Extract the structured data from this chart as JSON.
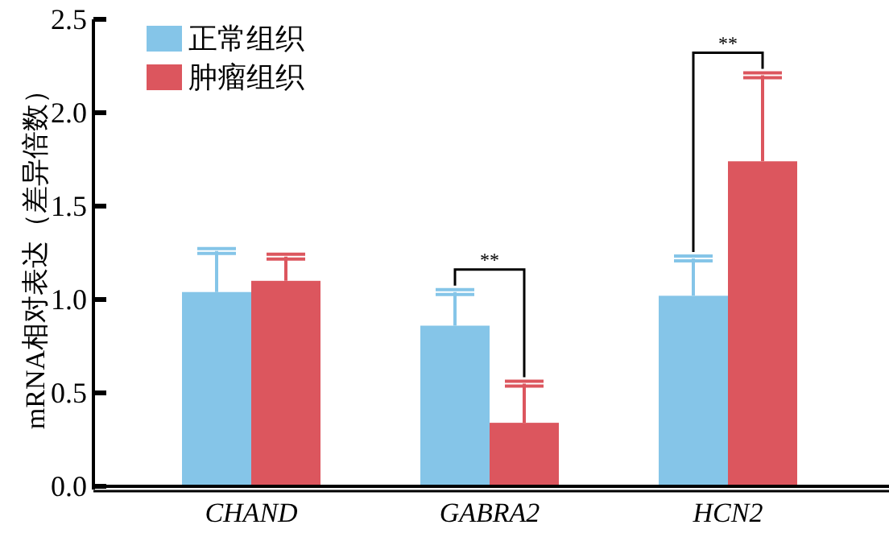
{
  "chart_data": {
    "type": "bar",
    "ylabel": "mRNA相对表达（差异倍数）",
    "categories": [
      "CHAND",
      "GABRA2",
      "HCN2"
    ],
    "series": [
      {
        "name": "正常组织",
        "color": "#85c5e8",
        "values": [
          1.04,
          0.86,
          1.02
        ],
        "errors": [
          0.22,
          0.18,
          0.2
        ]
      },
      {
        "name": "肿瘤组织",
        "color": "#dc565e",
        "values": [
          1.1,
          0.34,
          1.74
        ],
        "errors": [
          0.13,
          0.21,
          0.46
        ]
      }
    ],
    "annotations": [
      "**",
      "**"
    ],
    "ylim": [
      0,
      2.5
    ],
    "yticks": [
      {
        "value": 0,
        "label": "0.0"
      },
      0.5,
      {
        "value": 1,
        "label": "1.0"
      },
      1.5,
      {
        "value": 2,
        "label": "2.0"
      },
      2.5
    ],
    "legend": "top left",
    "grid": false
  }
}
